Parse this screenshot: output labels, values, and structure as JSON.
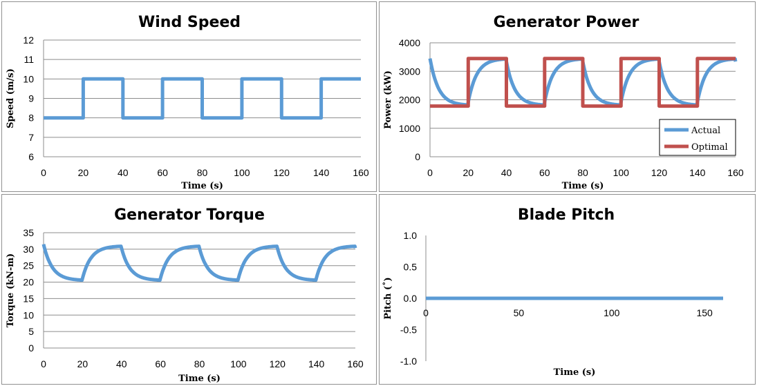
{
  "chart_data": [
    {
      "id": "wind",
      "type": "line",
      "title": "Wind Speed",
      "xlabel": "Time (s)",
      "ylabel": "Speed (m/s)",
      "xlim": [
        0,
        160
      ],
      "ylim": [
        6,
        12
      ],
      "xticks": [
        0,
        20,
        40,
        60,
        80,
        100,
        120,
        140,
        160
      ],
      "yticks": [
        6,
        7,
        8,
        9,
        10,
        11,
        12
      ],
      "grid": true,
      "series": [
        {
          "color": "#5b9bd5",
          "kind": "step",
          "x": [
            0,
            20,
            20,
            40,
            40,
            60,
            60,
            80,
            80,
            100,
            100,
            120,
            120,
            140,
            140,
            160
          ],
          "y": [
            8,
            8,
            10,
            10,
            8,
            8,
            10,
            10,
            8,
            8,
            10,
            10,
            8,
            8,
            10,
            10
          ]
        }
      ]
    },
    {
      "id": "power",
      "type": "line",
      "title": "Generator Power",
      "xlabel": "Time (s)",
      "ylabel": "Power (kW)",
      "xlim": [
        0,
        160
      ],
      "ylim": [
        0,
        4000
      ],
      "xticks": [
        0,
        20,
        40,
        60,
        80,
        100,
        120,
        140,
        160
      ],
      "yticks": [
        0,
        1000,
        2000,
        3000,
        4000
      ],
      "grid": true,
      "legend": "bottom-right",
      "series": [
        {
          "name": "Actual",
          "color": "#5b9bd5",
          "kind": "exp",
          "start": 3450,
          "low": 1800,
          "high": 3450,
          "period": 20,
          "x": [
            0,
            20,
            40,
            60,
            80,
            100,
            120,
            140,
            160
          ],
          "y": [
            3450,
            1880,
            3380,
            1870,
            3380,
            1870,
            3380,
            1870,
            3380
          ]
        },
        {
          "name": "Optimal",
          "color": "#c0504d",
          "kind": "step",
          "x": [
            0,
            20,
            20,
            40,
            40,
            60,
            60,
            80,
            80,
            100,
            100,
            120,
            120,
            140,
            140,
            160
          ],
          "y": [
            1780,
            1780,
            3450,
            3450,
            1780,
            1780,
            3450,
            3450,
            1780,
            1780,
            3450,
            3450,
            1780,
            1780,
            3450,
            3450
          ]
        }
      ]
    },
    {
      "id": "torque",
      "type": "line",
      "title": "Generator Torque",
      "xlabel": "Time (s)",
      "ylabel": "Torque (kN-m)",
      "xlim": [
        0,
        160
      ],
      "ylim": [
        0,
        35
      ],
      "xticks": [
        0,
        20,
        40,
        60,
        80,
        100,
        120,
        140,
        160
      ],
      "yticks": [
        0,
        5,
        10,
        15,
        20,
        25,
        30,
        35
      ],
      "grid": true,
      "series": [
        {
          "color": "#5b9bd5",
          "kind": "exp",
          "start": 31.5,
          "low": 20.5,
          "high": 31,
          "period": 20,
          "x": [
            0,
            20,
            40,
            60,
            80,
            100,
            120,
            140,
            160
          ],
          "y": [
            31.5,
            20.8,
            30.9,
            20.7,
            30.9,
            20.7,
            30.9,
            20.7,
            30.9
          ]
        }
      ]
    },
    {
      "id": "pitch",
      "type": "line",
      "title": "Blade Pitch",
      "xlabel": "Time (s)",
      "ylabel": "Pitch (˚)",
      "xlim": [
        0,
        160
      ],
      "ylim": [
        -1.0,
        1.0
      ],
      "xticks": [
        0,
        50,
        100,
        150
      ],
      "yticks": [
        1.0,
        0.5,
        0.0,
        -0.5,
        -1.0
      ],
      "ytick_labels": [
        "1.0",
        "0.5",
        "0.0",
        "-0.5",
        "-1.0"
      ],
      "grid": false,
      "series": [
        {
          "color": "#5b9bd5",
          "kind": "line",
          "x": [
            0,
            160
          ],
          "y": [
            0,
            0
          ]
        }
      ]
    }
  ]
}
